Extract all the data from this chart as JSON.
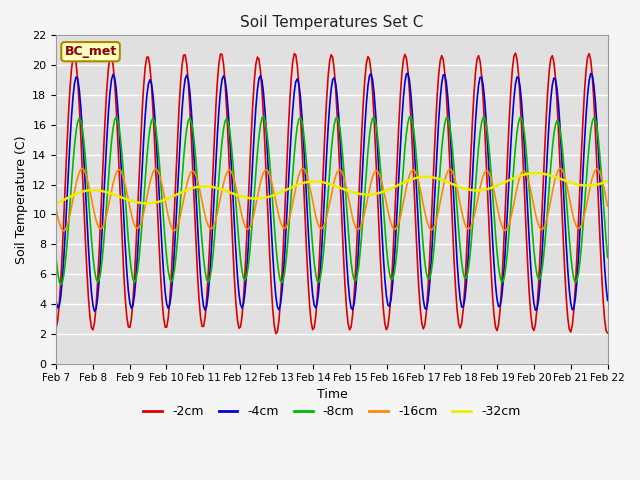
{
  "title": "Soil Temperatures Set C",
  "xlabel": "Time",
  "ylabel": "Soil Temperature (C)",
  "label_text": "BC_met",
  "ylim": [
    0,
    22
  ],
  "x_tick_labels": [
    "Feb 7",
    "Feb 8",
    "Feb 9",
    "Feb 10",
    "Feb 11",
    "Feb 12",
    "Feb 13",
    "Feb 14",
    "Feb 15",
    "Feb 16",
    "Feb 17",
    "Feb 18",
    "Feb 19",
    "Feb 20",
    "Feb 21",
    "Feb 22"
  ],
  "series": {
    "-2cm": {
      "color": "#dd0000",
      "linewidth": 1.2
    },
    "-4cm": {
      "color": "#0000dd",
      "linewidth": 1.2
    },
    "-8cm": {
      "color": "#00bb00",
      "linewidth": 1.2
    },
    "-16cm": {
      "color": "#ff8800",
      "linewidth": 1.2
    },
    "-32cm": {
      "color": "#eeee00",
      "linewidth": 1.8
    }
  },
  "plot_bg": "#e0e0e0",
  "fig_bg": "#f5f5f5",
  "grid_color": "#ffffff",
  "n_points": 360,
  "n_days": 15,
  "seed": 7
}
